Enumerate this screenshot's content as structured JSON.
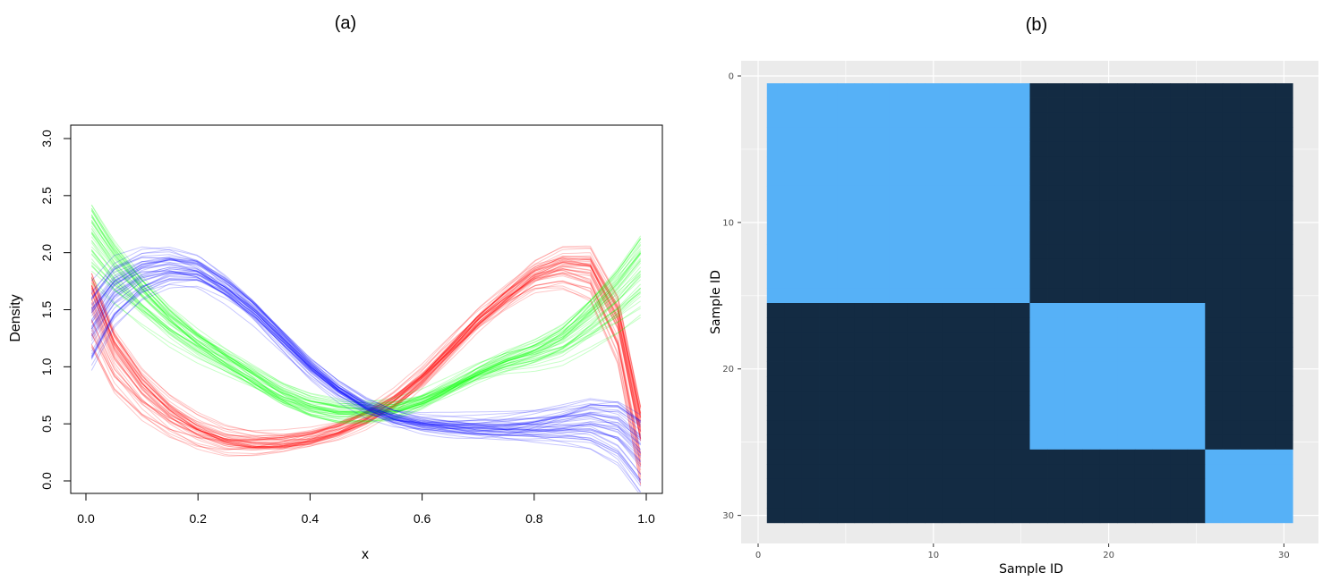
{
  "chart_data": [
    {
      "panel": "(a)",
      "type": "line",
      "xlabel": "x",
      "ylabel": "Density",
      "xlim": [
        0.0,
        1.0
      ],
      "ylim": [
        0.0,
        3.0
      ],
      "xticks": [
        "0.0",
        "0.2",
        "0.4",
        "0.6",
        "0.8",
        "1.0"
      ],
      "yticks": [
        "0.0",
        "0.5",
        "1.0",
        "1.5",
        "2.0",
        "2.5",
        "3.0"
      ],
      "x": [
        0.01,
        0.05,
        0.1,
        0.15,
        0.2,
        0.25,
        0.3,
        0.35,
        0.4,
        0.45,
        0.5,
        0.55,
        0.6,
        0.65,
        0.7,
        0.75,
        0.8,
        0.85,
        0.9,
        0.95,
        0.99
      ],
      "series": [
        {
          "color": "#ff0000",
          "values": [
            1.5,
            1.05,
            0.75,
            0.55,
            0.42,
            0.34,
            0.32,
            0.33,
            0.37,
            0.44,
            0.55,
            0.7,
            0.9,
            1.15,
            1.4,
            1.6,
            1.78,
            1.85,
            1.8,
            1.3,
            0.3
          ]
        },
        {
          "color": "#00ff00",
          "values": [
            2.1,
            1.85,
            1.6,
            1.38,
            1.2,
            1.05,
            0.9,
            0.75,
            0.65,
            0.6,
            0.6,
            0.62,
            0.7,
            0.82,
            0.95,
            1.05,
            1.12,
            1.22,
            1.4,
            1.6,
            1.8
          ]
        },
        {
          "color": "#0000ff",
          "values": [
            1.35,
            1.65,
            1.82,
            1.88,
            1.85,
            1.7,
            1.5,
            1.25,
            1.0,
            0.8,
            0.65,
            0.55,
            0.5,
            0.48,
            0.47,
            0.47,
            0.48,
            0.5,
            0.52,
            0.45,
            0.25
          ]
        }
      ]
    },
    {
      "panel": "(b)",
      "type": "heatmap",
      "xlabel": "Sample ID",
      "ylabel": "Sample ID",
      "xlim": [
        0,
        31
      ],
      "ylim": [
        0,
        31
      ],
      "xticks": [
        "0",
        "10",
        "20",
        "30"
      ],
      "yticks": [
        "0",
        "10",
        "20",
        "30"
      ],
      "n_samples": 30,
      "clusters": [
        {
          "start": 1,
          "end": 15
        },
        {
          "start": 16,
          "end": 25
        },
        {
          "start": 26,
          "end": 30
        }
      ],
      "colors": {
        "same_cluster": "#56b1f7",
        "different_cluster": "#132b43",
        "panel_background": "#ebebeb",
        "grid": "#ffffff"
      }
    }
  ]
}
